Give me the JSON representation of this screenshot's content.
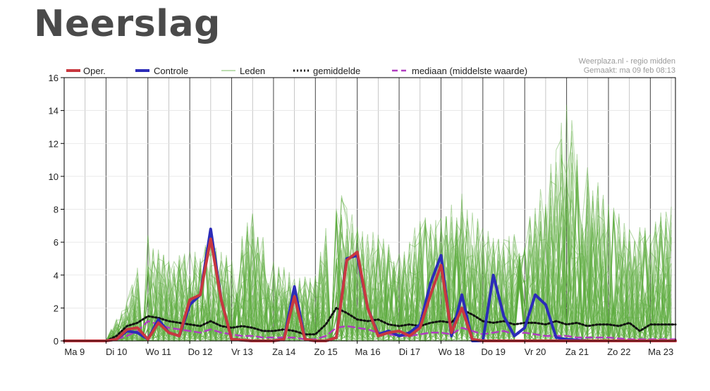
{
  "page": {
    "title": "Neerslag"
  },
  "credit": {
    "line1": "Weerplaza.nl - regio midden",
    "line2": "Gemaakt: ma 09 feb 08:13"
  },
  "colors": {
    "oper": "#c8383f",
    "controle": "#2c2cb8",
    "leden": "#5aab3c",
    "gemiddelde": "#111111",
    "mediaan": "#b03cc0",
    "grid": "#b8b8b8",
    "day_line": "#444444"
  },
  "chart_data": {
    "type": "line",
    "ylim": [
      0,
      16
    ],
    "yticks": [
      0,
      2,
      4,
      6,
      8,
      10,
      12,
      14,
      16
    ],
    "xlim": [
      0,
      14.6
    ],
    "day_labels": [
      "Ma 9",
      "Di 10",
      "Wo 11",
      "Do 12",
      "Vr 13",
      "Za 14",
      "Zo 15",
      "Ma 16",
      "Di 17",
      "Wo 18",
      "Do 19",
      "Vr 20",
      "Za 21",
      "Zo 22",
      "Ma 23"
    ],
    "legend": [
      "Oper.",
      "Controle",
      "Leden",
      "gemiddelde",
      "mediaan (middelste waarde)"
    ],
    "legend_position": "top",
    "series": [
      {
        "name": "Oper.",
        "style": "thick-red",
        "points": [
          [
            0,
            0
          ],
          [
            0.5,
            0
          ],
          [
            1,
            0
          ],
          [
            1.25,
            0.1
          ],
          [
            1.5,
            0.7
          ],
          [
            1.75,
            0.8
          ],
          [
            2,
            0.1
          ],
          [
            2.25,
            1.1
          ],
          [
            2.5,
            0.5
          ],
          [
            2.75,
            0.3
          ],
          [
            3,
            2.5
          ],
          [
            3.25,
            2.8
          ],
          [
            3.5,
            6.2
          ],
          [
            3.75,
            2.5
          ],
          [
            4,
            0.1
          ],
          [
            4.5,
            0
          ],
          [
            5,
            0
          ],
          [
            5.25,
            0.1
          ],
          [
            5.5,
            2.7
          ],
          [
            5.75,
            0.1
          ],
          [
            6,
            0
          ],
          [
            6.25,
            0
          ],
          [
            6.5,
            0.2
          ],
          [
            6.75,
            4.9
          ],
          [
            7,
            5.4
          ],
          [
            7.25,
            2
          ],
          [
            7.5,
            0.3
          ],
          [
            7.75,
            0.5
          ],
          [
            8,
            0.6
          ],
          [
            8.25,
            0.3
          ],
          [
            8.5,
            0.8
          ],
          [
            8.75,
            2.8
          ],
          [
            9,
            4.6
          ],
          [
            9.25,
            0.5
          ],
          [
            9.5,
            2
          ],
          [
            9.75,
            0.1
          ],
          [
            10,
            0
          ],
          [
            10.5,
            0
          ],
          [
            11,
            0
          ],
          [
            11.5,
            0
          ],
          [
            12,
            0
          ],
          [
            12.5,
            0
          ],
          [
            13,
            0
          ],
          [
            13.5,
            0
          ],
          [
            14,
            0
          ],
          [
            14.6,
            0
          ]
        ]
      },
      {
        "name": "Controle",
        "style": "thick-blue",
        "points": [
          [
            0,
            0
          ],
          [
            0.5,
            0
          ],
          [
            1,
            0
          ],
          [
            1.25,
            0.1
          ],
          [
            1.5,
            0.6
          ],
          [
            1.75,
            0.5
          ],
          [
            2,
            0.1
          ],
          [
            2.25,
            1.3
          ],
          [
            2.5,
            0.5
          ],
          [
            2.75,
            0.3
          ],
          [
            3,
            2.2
          ],
          [
            3.25,
            2.8
          ],
          [
            3.5,
            6.8
          ],
          [
            3.75,
            2.5
          ],
          [
            4,
            0.1
          ],
          [
            4.5,
            0
          ],
          [
            5,
            0
          ],
          [
            5.25,
            0.1
          ],
          [
            5.5,
            3.3
          ],
          [
            5.75,
            0.1
          ],
          [
            6,
            0
          ],
          [
            6.25,
            0
          ],
          [
            6.5,
            0.2
          ],
          [
            6.75,
            5
          ],
          [
            7,
            5.2
          ],
          [
            7.25,
            2
          ],
          [
            7.5,
            0.4
          ],
          [
            7.75,
            0.6
          ],
          [
            8,
            0.3
          ],
          [
            8.25,
            0.5
          ],
          [
            8.5,
            1
          ],
          [
            8.75,
            3.5
          ],
          [
            9,
            5.2
          ],
          [
            9.25,
            0.3
          ],
          [
            9.5,
            2.8
          ],
          [
            9.75,
            0
          ],
          [
            10,
            0
          ],
          [
            10.25,
            4
          ],
          [
            10.5,
            1.5
          ],
          [
            10.75,
            0.3
          ],
          [
            11,
            0.8
          ],
          [
            11.25,
            2.8
          ],
          [
            11.5,
            2.2
          ],
          [
            11.75,
            0.2
          ],
          [
            12,
            0.1
          ],
          [
            12.5,
            0
          ],
          [
            13,
            0
          ],
          [
            13.5,
            0
          ],
          [
            14,
            0
          ],
          [
            14.6,
            0
          ]
        ]
      },
      {
        "name": "gemiddelde",
        "style": "dotted-black",
        "points": [
          [
            0,
            0
          ],
          [
            1,
            0
          ],
          [
            1.25,
            0.3
          ],
          [
            1.5,
            0.9
          ],
          [
            1.75,
            1.1
          ],
          [
            2,
            1.5
          ],
          [
            2.25,
            1.4
          ],
          [
            2.5,
            1.2
          ],
          [
            2.75,
            1.1
          ],
          [
            3,
            1
          ],
          [
            3.25,
            0.9
          ],
          [
            3.5,
            1.2
          ],
          [
            3.75,
            0.9
          ],
          [
            4,
            0.8
          ],
          [
            4.25,
            0.9
          ],
          [
            4.5,
            0.8
          ],
          [
            4.75,
            0.6
          ],
          [
            5,
            0.6
          ],
          [
            5.25,
            0.7
          ],
          [
            5.5,
            0.6
          ],
          [
            5.75,
            0.4
          ],
          [
            6,
            0.4
          ],
          [
            6.25,
            1
          ],
          [
            6.5,
            2
          ],
          [
            6.75,
            1.7
          ],
          [
            7,
            1.3
          ],
          [
            7.25,
            1.2
          ],
          [
            7.5,
            1.3
          ],
          [
            7.75,
            1
          ],
          [
            8,
            0.9
          ],
          [
            8.25,
            1
          ],
          [
            8.5,
            0.9
          ],
          [
            8.75,
            1.1
          ],
          [
            9,
            1.2
          ],
          [
            9.25,
            1.1
          ],
          [
            9.5,
            1.9
          ],
          [
            9.75,
            1.6
          ],
          [
            10,
            1.2
          ],
          [
            10.25,
            1.1
          ],
          [
            10.5,
            1.2
          ],
          [
            10.75,
            1
          ],
          [
            11,
            1.1
          ],
          [
            11.25,
            1.1
          ],
          [
            11.5,
            1
          ],
          [
            11.75,
            1.2
          ],
          [
            12,
            1
          ],
          [
            12.25,
            1.1
          ],
          [
            12.5,
            0.9
          ],
          [
            12.75,
            1
          ],
          [
            13,
            1
          ],
          [
            13.25,
            0.9
          ],
          [
            13.5,
            1.1
          ],
          [
            13.75,
            0.6
          ],
          [
            14,
            1
          ],
          [
            14.25,
            1
          ],
          [
            14.6,
            1
          ]
        ]
      },
      {
        "name": "mediaan (middelste waarde)",
        "style": "dashed-magenta",
        "points": [
          [
            0,
            0
          ],
          [
            1,
            0
          ],
          [
            1.25,
            0.1
          ],
          [
            1.5,
            0.3
          ],
          [
            1.75,
            0.6
          ],
          [
            2,
            1.2
          ],
          [
            2.25,
            1
          ],
          [
            2.5,
            0.8
          ],
          [
            2.75,
            0.7
          ],
          [
            3,
            0.6
          ],
          [
            3.25,
            0.5
          ],
          [
            3.5,
            0.7
          ],
          [
            3.75,
            0.5
          ],
          [
            4,
            0.4
          ],
          [
            4.25,
            0.3
          ],
          [
            4.5,
            0.3
          ],
          [
            4.75,
            0.2
          ],
          [
            5,
            0.2
          ],
          [
            5.25,
            0.2
          ],
          [
            5.5,
            0.2
          ],
          [
            5.75,
            0.1
          ],
          [
            6,
            0.1
          ],
          [
            6.25,
            0.3
          ],
          [
            6.5,
            0.8
          ],
          [
            6.75,
            0.9
          ],
          [
            7,
            0.8
          ],
          [
            7.25,
            0.7
          ],
          [
            7.5,
            0.5
          ],
          [
            7.75,
            0.4
          ],
          [
            8,
            0.3
          ],
          [
            8.25,
            0.3
          ],
          [
            8.5,
            0.4
          ],
          [
            8.75,
            0.5
          ],
          [
            9,
            0.5
          ],
          [
            9.25,
            0.4
          ],
          [
            9.5,
            0.8
          ],
          [
            9.75,
            0.6
          ],
          [
            10,
            0.4
          ],
          [
            10.25,
            0.5
          ],
          [
            10.5,
            0.6
          ],
          [
            10.75,
            0.4
          ],
          [
            11,
            0.5
          ],
          [
            11.25,
            0.4
          ],
          [
            11.5,
            0.3
          ],
          [
            11.75,
            0.3
          ],
          [
            12,
            0.3
          ],
          [
            12.25,
            0.2
          ],
          [
            12.5,
            0.2
          ],
          [
            12.75,
            0.2
          ],
          [
            13,
            0.2
          ],
          [
            13.5,
            0.1
          ],
          [
            14,
            0.1
          ],
          [
            14.6,
            0.1
          ]
        ]
      }
    ],
    "members_envelope": [
      [
        0,
        0
      ],
      [
        1,
        0.2
      ],
      [
        1.5,
        2.5
      ],
      [
        2,
        6.5
      ],
      [
        2.5,
        5
      ],
      [
        3,
        5.5
      ],
      [
        3.5,
        6
      ],
      [
        4,
        5
      ],
      [
        4.5,
        8
      ],
      [
        5,
        5
      ],
      [
        5.5,
        4
      ],
      [
        6,
        4
      ],
      [
        6.5,
        9.8
      ],
      [
        7,
        7
      ],
      [
        7.5,
        6.5
      ],
      [
        8,
        5.5
      ],
      [
        8.5,
        7.5
      ],
      [
        9,
        8
      ],
      [
        9.5,
        9
      ],
      [
        10,
        7
      ],
      [
        10.5,
        6.5
      ],
      [
        11,
        7
      ],
      [
        11.5,
        10
      ],
      [
        12,
        14.7
      ],
      [
        12.5,
        10.8
      ],
      [
        13,
        8.5
      ],
      [
        13.5,
        7
      ],
      [
        14,
        7
      ],
      [
        14.6,
        9
      ]
    ]
  }
}
